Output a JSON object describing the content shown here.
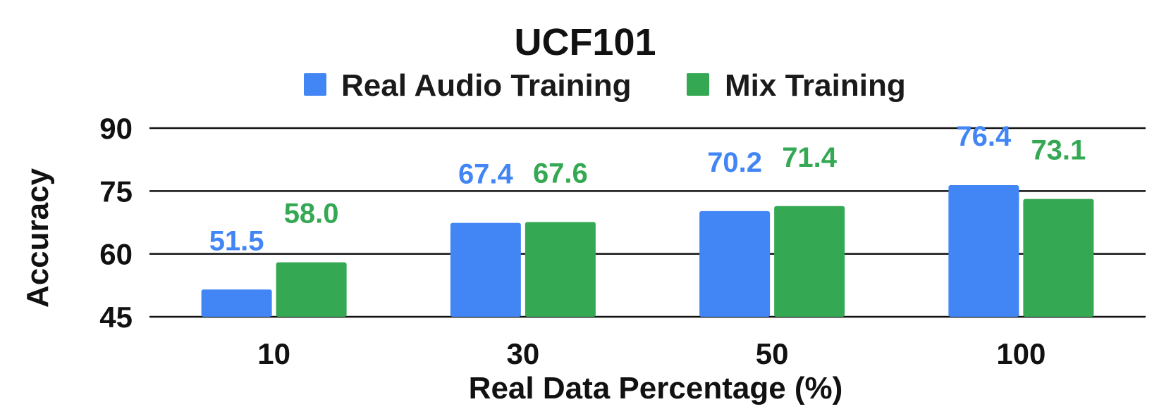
{
  "chart_data": {
    "type": "bar",
    "title": "UCF101",
    "xlabel": "Real Data Percentage (%)",
    "ylabel": "Accuracy",
    "categories": [
      "10",
      "30",
      "50",
      "100"
    ],
    "ylim": [
      45,
      90
    ],
    "yticks": [
      "45",
      "60",
      "75",
      "90"
    ],
    "grid": true,
    "legend_position": "top-center",
    "series": [
      {
        "name": "Real Audio Training",
        "color": "#4285F4",
        "values": [
          51.5,
          67.4,
          70.2,
          76.4
        ],
        "labels": [
          "51.5",
          "67.4",
          "70.2",
          "76.4"
        ]
      },
      {
        "name": "Mix Training",
        "color": "#34A853",
        "values": [
          58.0,
          67.6,
          71.4,
          73.1
        ],
        "labels": [
          "58.0",
          "67.6",
          "71.4",
          "73.1"
        ]
      }
    ]
  }
}
